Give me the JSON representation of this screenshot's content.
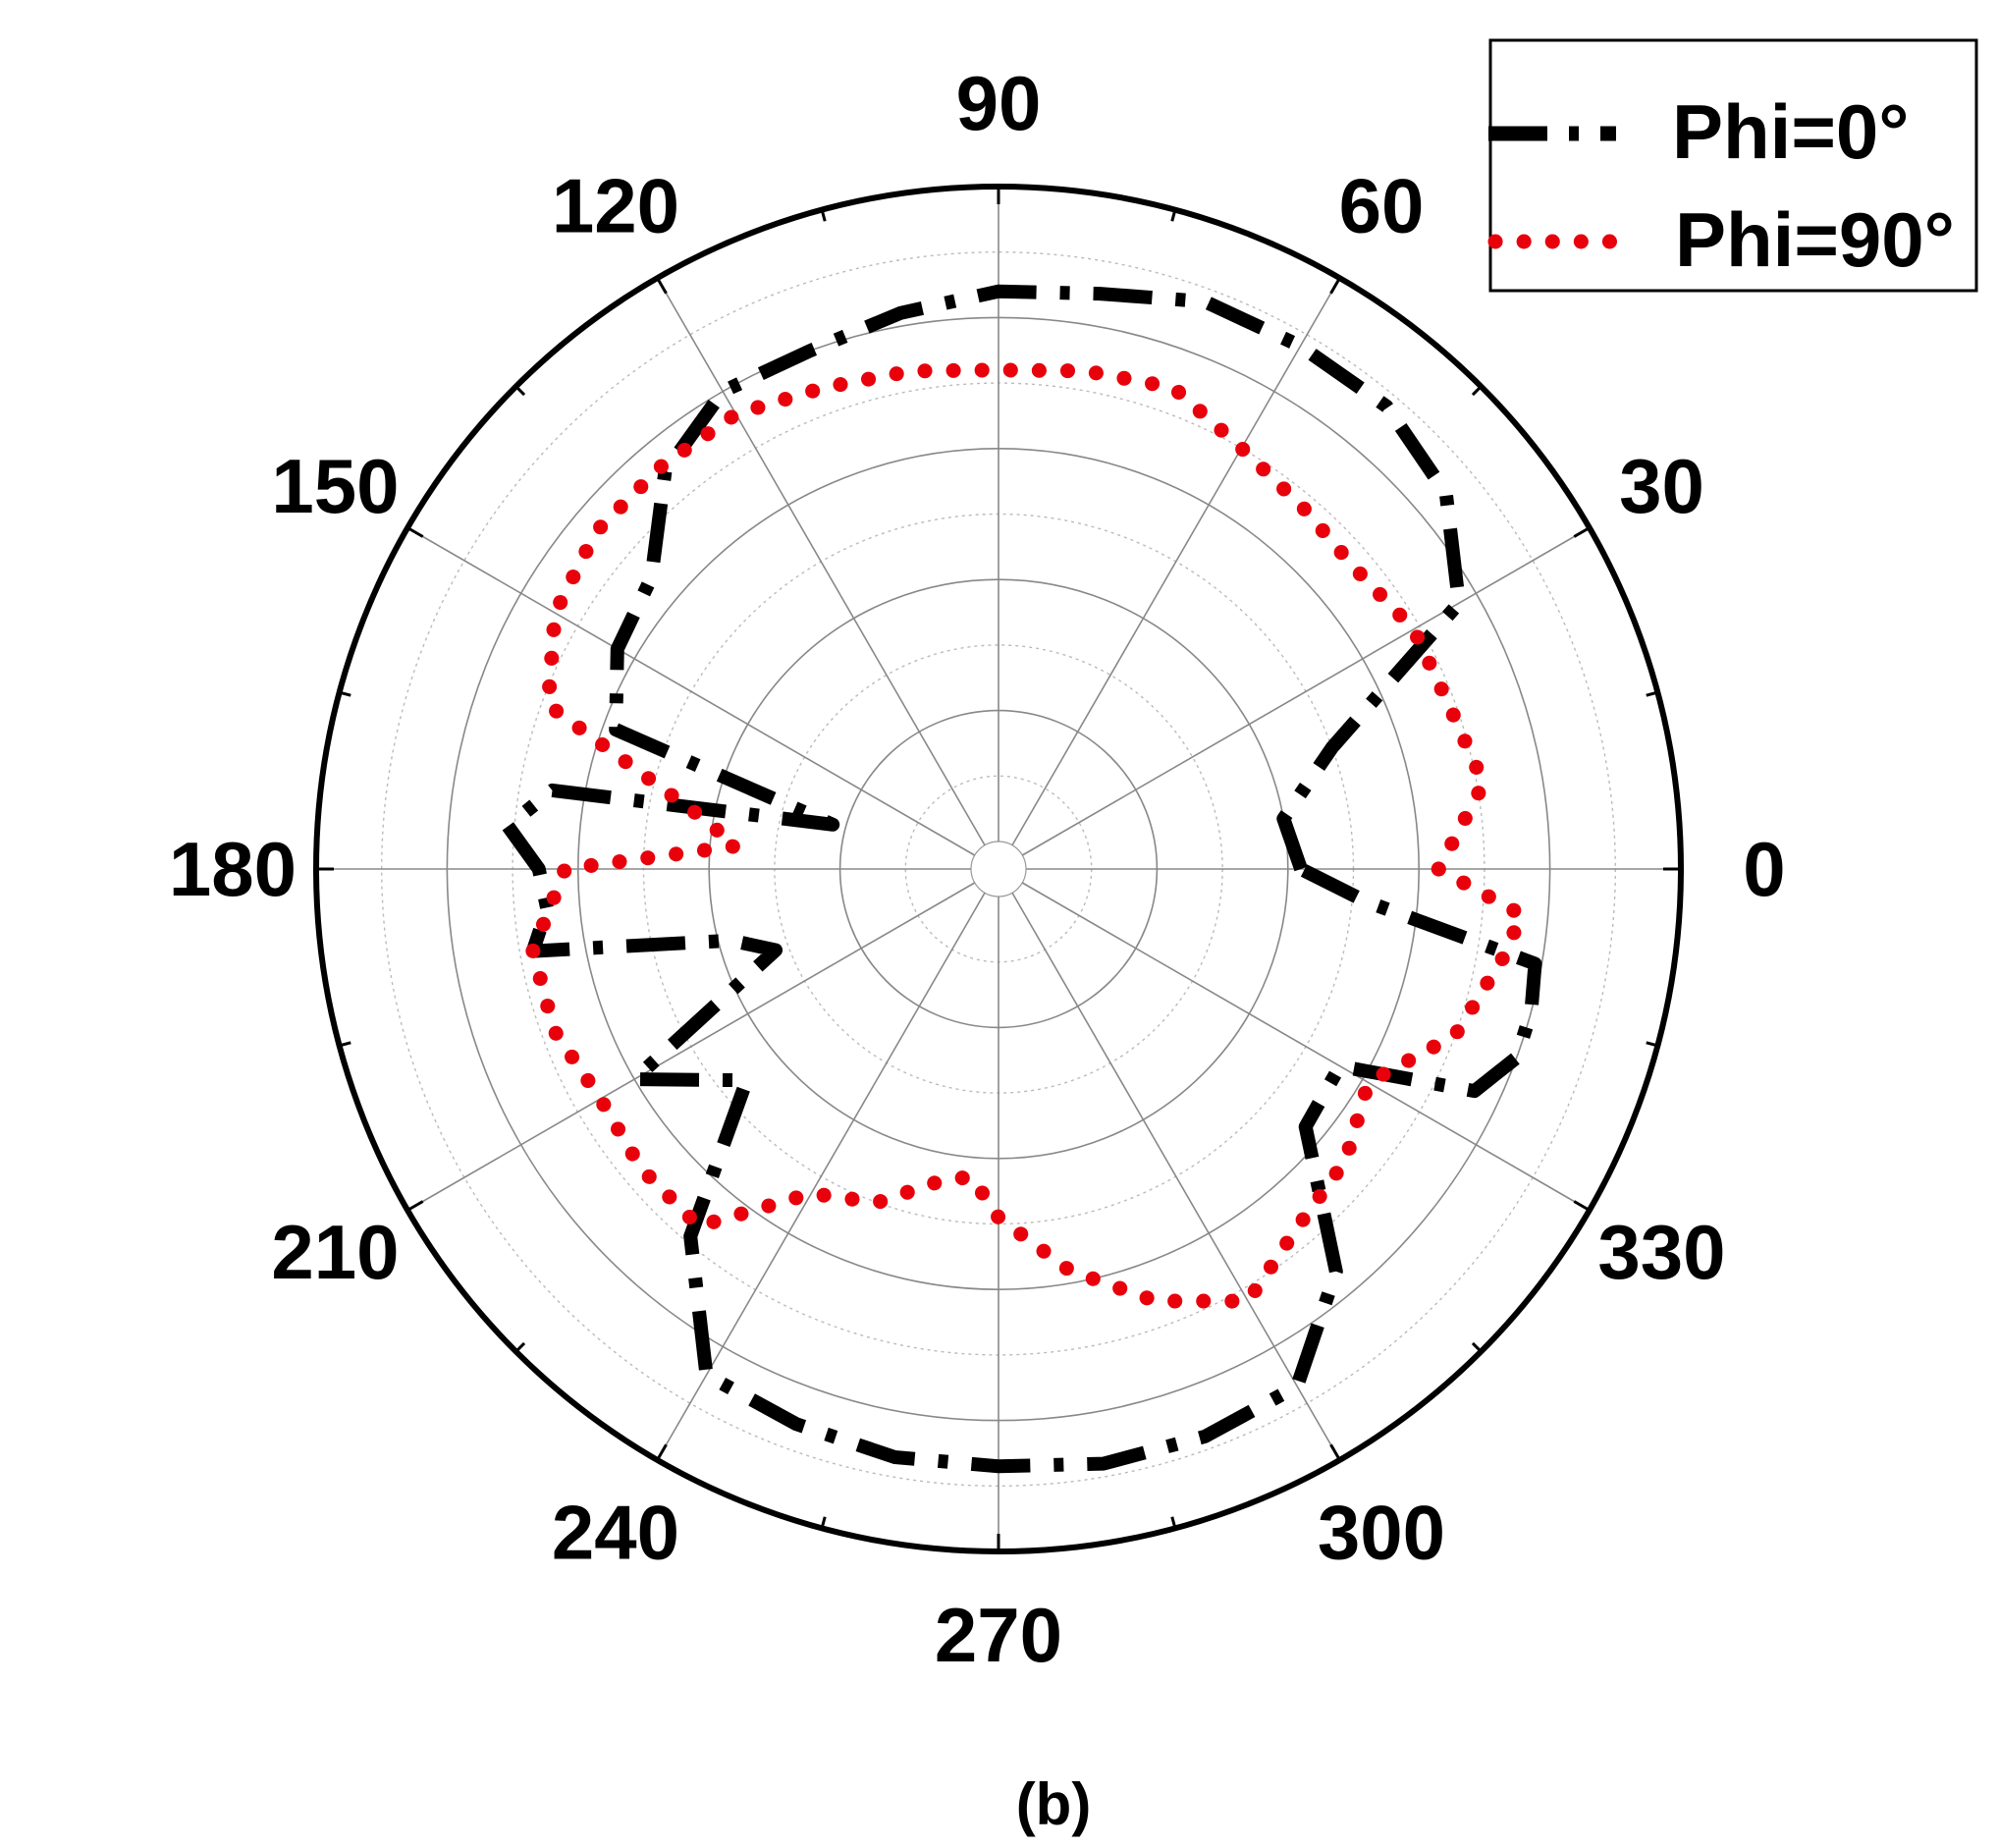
{
  "chart_data": {
    "type": "polar-line",
    "title": "",
    "panel_label": "(b)",
    "theta_ticks": [
      "0",
      "30",
      "60",
      "90",
      "120",
      "150",
      "180",
      "210",
      "240",
      "270",
      "300",
      "330"
    ],
    "theta_tick_values": [
      0,
      30,
      60,
      90,
      120,
      150,
      180,
      210,
      240,
      270,
      300,
      330
    ],
    "r_range": [
      0,
      10
    ],
    "r_rings": [
      1,
      2,
      3,
      4,
      5,
      6,
      7,
      8,
      9,
      10
    ],
    "grid": true,
    "legend_position": "top-right",
    "series": [
      {
        "name": "Phi=0°",
        "color": "#000000",
        "style": "dash-dot",
        "theta": [
          0,
          10,
          20,
          30,
          40,
          50,
          60,
          70,
          80,
          90,
          100,
          110,
          120,
          130,
          140,
          150,
          160,
          165,
          170,
          175,
          180,
          185,
          190,
          195,
          200,
          210,
          220,
          230,
          240,
          250,
          260,
          270,
          280,
          290,
          300,
          310,
          320,
          330,
          335,
          340,
          345,
          350,
          355
        ],
        "r": [
          4.2,
          4.0,
          5.0,
          7.7,
          8.5,
          8.8,
          8.8,
          8.8,
          8.5,
          8.4,
          8.2,
          8.0,
          8.0,
          7.5,
          6.5,
          6.3,
          5.8,
          2.2,
          6.5,
          7.1,
          6.6,
          6.5,
          6.8,
          3.8,
          3.2,
          6.0,
          4.6,
          6.9,
          8.5,
          8.6,
          8.7,
          8.7,
          8.8,
          8.8,
          8.7,
          7.6,
          5.7,
          5.6,
          7.6,
          8.0,
          8.0,
          7.9,
          5.2
        ]
      },
      {
        "name": "Phi=90°",
        "color": "#e8000b",
        "style": "dotted",
        "theta": [
          0,
          10,
          20,
          30,
          40,
          50,
          60,
          70,
          80,
          90,
          100,
          110,
          120,
          130,
          140,
          150,
          160,
          170,
          175,
          180,
          190,
          200,
          210,
          220,
          230,
          240,
          250,
          260,
          265,
          270,
          280,
          290,
          300,
          310,
          320,
          330,
          340,
          350,
          355
        ],
        "r": [
          6.3,
          7.1,
          6.9,
          6.9,
          6.7,
          6.8,
          7.0,
          7.4,
          7.3,
          7.2,
          7.3,
          7.4,
          7.6,
          7.6,
          7.6,
          7.4,
          6.9,
          4.2,
          3.6,
          6.2,
          6.8,
          6.8,
          6.6,
          6.7,
          6.7,
          5.3,
          5.0,
          4.4,
          4.3,
          4.9,
          5.8,
          6.6,
          7.2,
          6.7,
          6.5,
          6.1,
          7.0,
          7.4,
          7.6
        ]
      }
    ]
  }
}
